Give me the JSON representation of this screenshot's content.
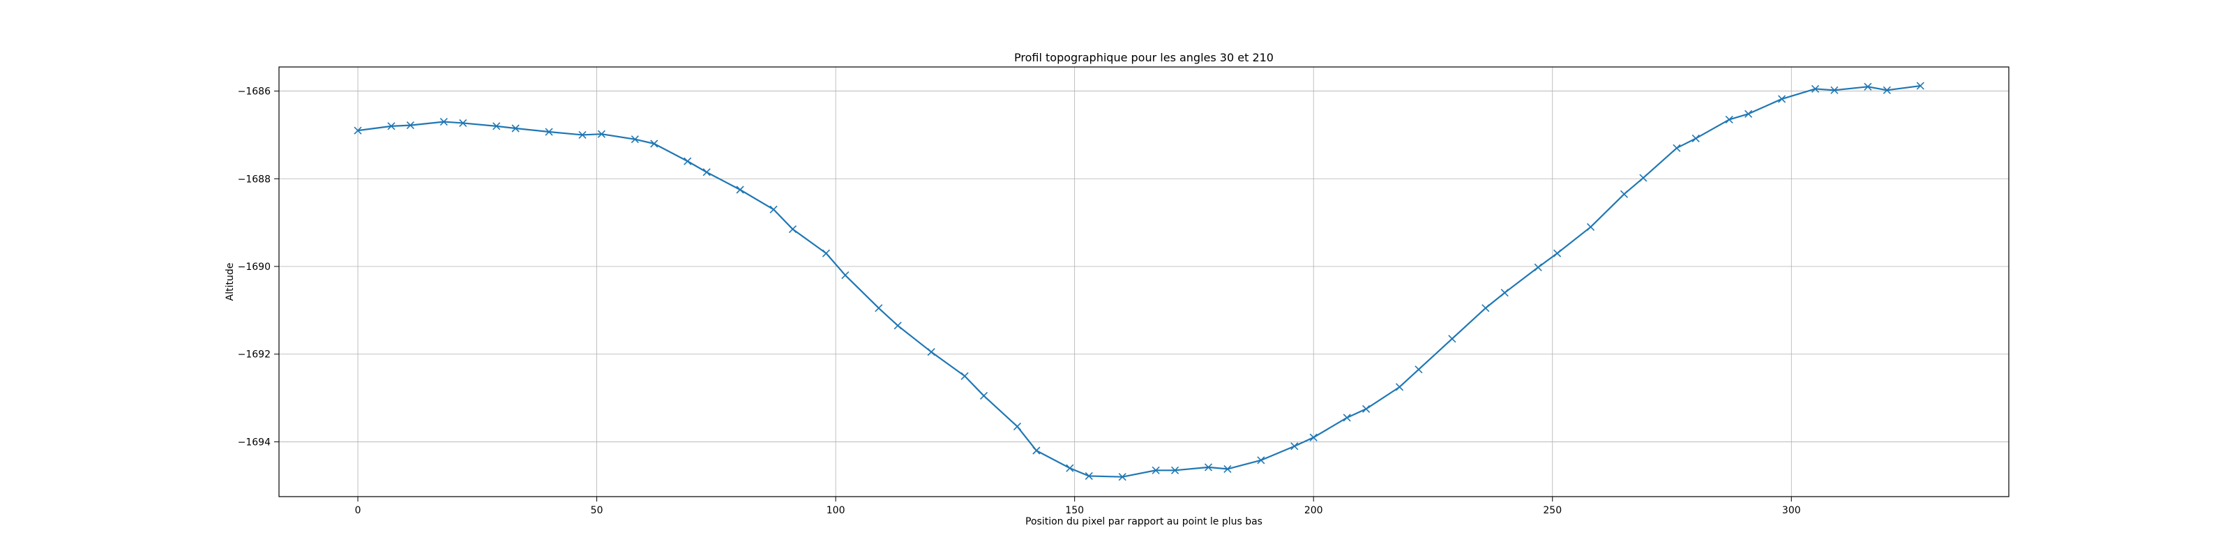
{
  "chart_data": {
    "type": "line",
    "title": "Profil topographique pour les angles 30 et 210",
    "xlabel": "Position du pixel par rapport au point le plus bas",
    "ylabel": "Altitude",
    "xlim": [
      -16.5,
      345.5
    ],
    "ylim": [
      -1695.25,
      -1685.45
    ],
    "xticks": [
      0,
      50,
      100,
      150,
      200,
      250,
      300
    ],
    "yticks": [
      -1694,
      -1692,
      -1690,
      -1688,
      -1686
    ],
    "grid": true,
    "marker": "x",
    "color": "#1f77b4",
    "series": [
      {
        "x": [
          0,
          7,
          11,
          18,
          22,
          29,
          33,
          40,
          47,
          51,
          58,
          62,
          69,
          73,
          80,
          87,
          91,
          98,
          102,
          109,
          113,
          120,
          127,
          131,
          138,
          142,
          149,
          153,
          160,
          167,
          171,
          178,
          182,
          189,
          196,
          200,
          207,
          211,
          218,
          222,
          229,
          236,
          240,
          247,
          251,
          258,
          265,
          269,
          276,
          280,
          287,
          291,
          298,
          305,
          309,
          316,
          320,
          327
        ],
        "y": [
          -1686.9,
          -1686.8,
          -1686.78,
          -1686.7,
          -1686.73,
          -1686.8,
          -1686.85,
          -1686.93,
          -1687.0,
          -1686.98,
          -1687.1,
          -1687.2,
          -1687.6,
          -1687.85,
          -1688.25,
          -1688.7,
          -1689.15,
          -1689.7,
          -1690.2,
          -1690.95,
          -1691.35,
          -1691.95,
          -1692.5,
          -1692.95,
          -1693.65,
          -1694.2,
          -1694.6,
          -1694.78,
          -1694.8,
          -1694.65,
          -1694.65,
          -1694.58,
          -1694.62,
          -1694.42,
          -1694.1,
          -1693.9,
          -1693.45,
          -1693.25,
          -1692.75,
          -1692.35,
          -1691.65,
          -1690.95,
          -1690.6,
          -1690.02,
          -1689.7,
          -1689.1,
          -1688.35,
          -1687.98,
          -1687.3,
          -1687.08,
          -1686.65,
          -1686.52,
          -1686.18,
          -1685.95,
          -1685.98,
          -1685.9,
          -1685.98,
          -1685.88
        ]
      }
    ]
  }
}
